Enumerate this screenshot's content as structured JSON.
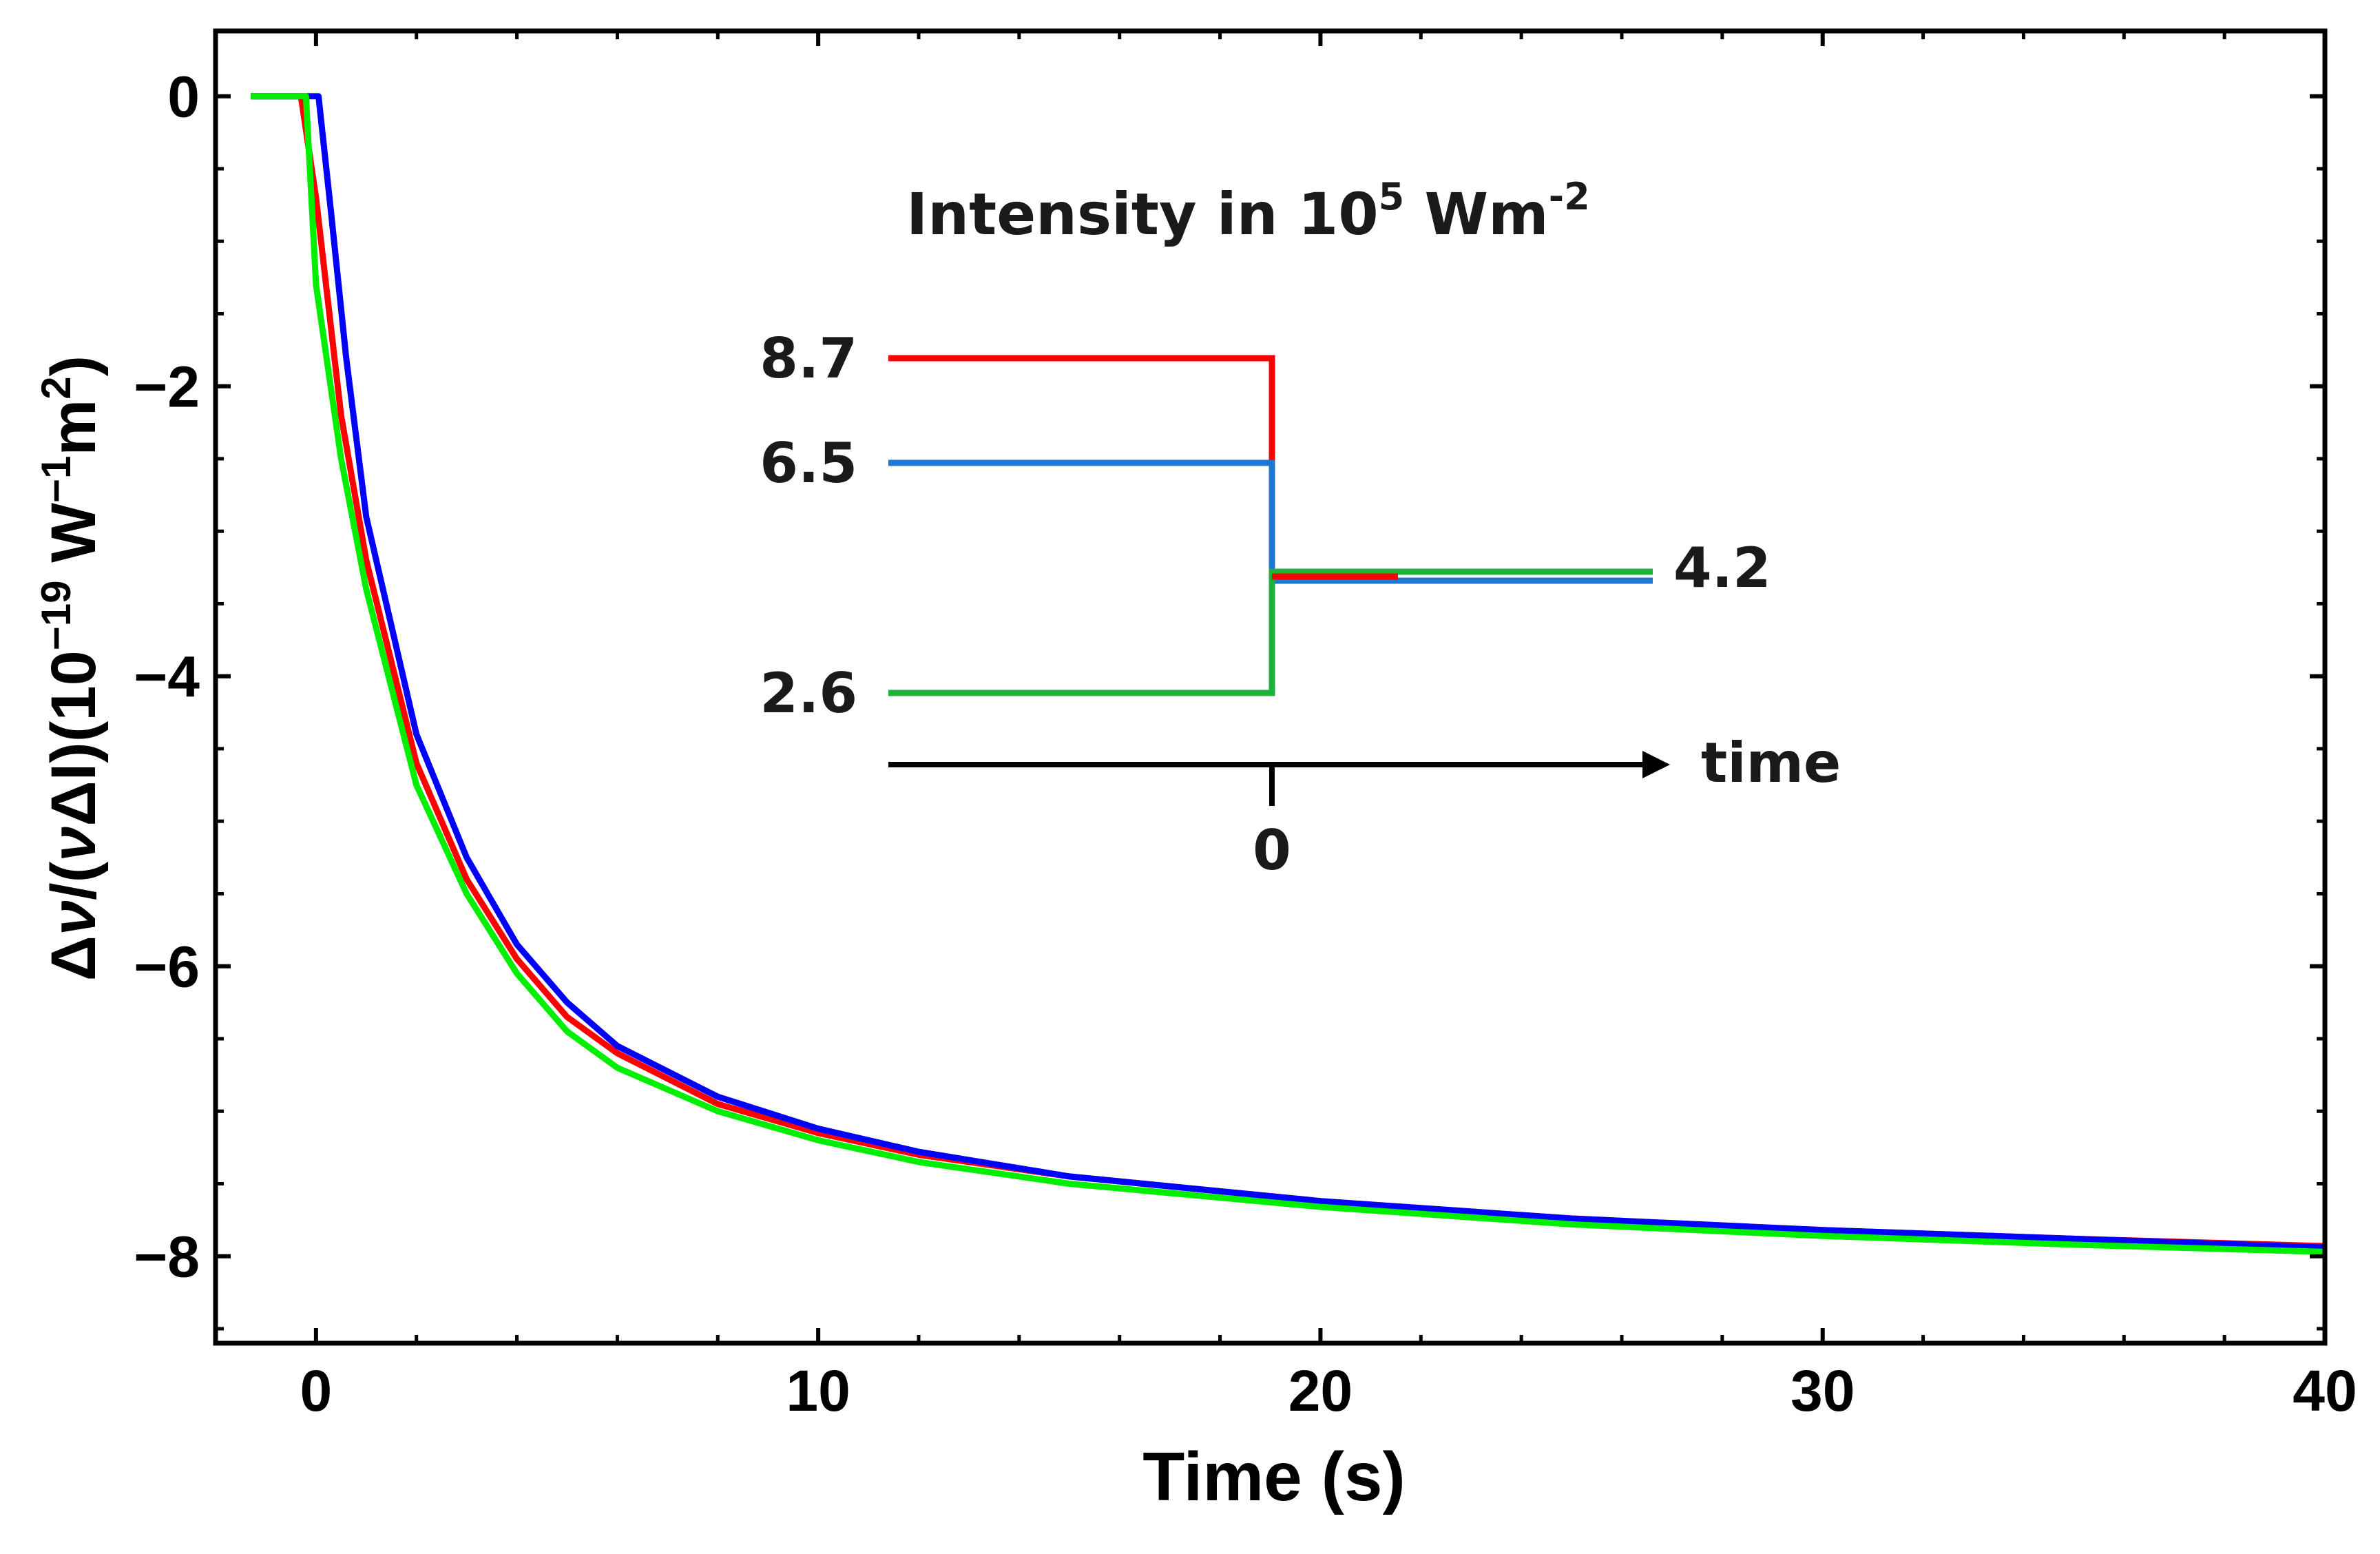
{
  "chart_data": {
    "type": "line",
    "xlabel": "Time (s)",
    "ylabel_parts": {
      "prefix": "Δ",
      "nu1": "ν",
      "mid": "/(",
      "nu2": "ν",
      "after_nu2": "ΔI)(10",
      "exp1": "−19",
      "w": " W",
      "exp2": "−1",
      "m": "m",
      "exp3": "2",
      "close": ")"
    },
    "xlim": [
      -2,
      40
    ],
    "ylim": [
      -8.6,
      0.45
    ],
    "x_ticks": [
      0,
      10,
      20,
      30,
      40
    ],
    "y_ticks": [
      0,
      -2,
      -4,
      -6,
      -8
    ],
    "x_tick_labels": [
      "0",
      "10",
      "20",
      "30",
      "40"
    ],
    "y_tick_labels": [
      "0",
      "−2",
      "−4",
      "−6",
      "−8"
    ],
    "grid": false,
    "series": [
      {
        "color": "#ff0000",
        "x": [
          -1.3,
          -0.3,
          0.0,
          0.5,
          1,
          2,
          3,
          4,
          5,
          6,
          8,
          10,
          12,
          15,
          20,
          25,
          30,
          35,
          40
        ],
        "y": [
          0,
          0,
          -0.7,
          -2.2,
          -3.2,
          -4.6,
          -5.4,
          -5.95,
          -6.35,
          -6.6,
          -6.95,
          -7.15,
          -7.3,
          -7.45,
          -7.62,
          -7.74,
          -7.82,
          -7.88,
          -7.93
        ]
      },
      {
        "color": "#0000ff",
        "x": [
          -1.3,
          0.05,
          0.3,
          0.6,
          1,
          2,
          3,
          4,
          5,
          6,
          8,
          10,
          12,
          15,
          20,
          25,
          30,
          35,
          40
        ],
        "y": [
          0,
          0,
          -0.8,
          -1.8,
          -2.9,
          -4.4,
          -5.25,
          -5.85,
          -6.25,
          -6.55,
          -6.9,
          -7.12,
          -7.28,
          -7.45,
          -7.62,
          -7.74,
          -7.82,
          -7.88,
          -7.94
        ]
      },
      {
        "color": "#00ee00",
        "x": [
          -1.3,
          -0.2,
          0.0,
          0.5,
          1,
          2,
          3,
          4,
          5,
          6,
          8,
          10,
          12,
          15,
          20,
          25,
          30,
          35,
          40
        ],
        "y": [
          0,
          0,
          -1.3,
          -2.5,
          -3.4,
          -4.75,
          -5.5,
          -6.05,
          -6.45,
          -6.7,
          -7.0,
          -7.2,
          -7.35,
          -7.5,
          -7.66,
          -7.78,
          -7.86,
          -7.92,
          -7.97
        ]
      }
    ],
    "inset": {
      "title_main": "Intensity in 10",
      "title_sup1": "5",
      "title_mid": " Wm",
      "title_sup2": "-2",
      "arrow_label": "time",
      "zero_label": "0",
      "final_level_label": "4.2",
      "initial_levels": [
        {
          "label": "8.7",
          "color": "#ff0000"
        },
        {
          "label": "6.5",
          "color": "#1f77d4"
        },
        {
          "label": "2.6",
          "color": "#1db33a"
        }
      ]
    }
  }
}
